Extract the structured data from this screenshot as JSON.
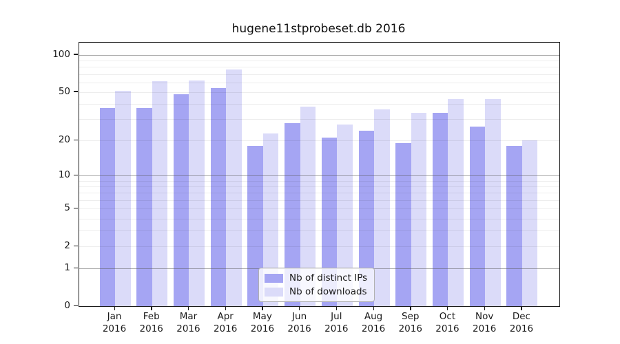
{
  "chart_data": {
    "type": "bar",
    "title": "hugene11stprobeset.db 2016",
    "categories": [
      "Jan 2016",
      "Feb 2016",
      "Mar 2016",
      "Apr 2016",
      "May 2016",
      "Jun 2016",
      "Jul 2016",
      "Aug 2016",
      "Sep 2016",
      "Oct 2016",
      "Nov 2016",
      "Dec 2016"
    ],
    "series": [
      {
        "name": "Nb of distinct IPs",
        "color": "#a5a5f3",
        "values": [
          37,
          37,
          48,
          54,
          18,
          28,
          21,
          24,
          19,
          34,
          26,
          18
        ]
      },
      {
        "name": "Nb of downloads",
        "color": "#dbdbf9",
        "values": [
          51,
          61,
          62,
          76,
          23,
          38,
          27,
          36,
          34,
          44,
          44,
          20
        ]
      }
    ],
    "xlabel": "",
    "ylabel": "",
    "yscale": "log1p",
    "ylim": [
      0,
      125
    ],
    "yticks": [
      0,
      1,
      2,
      5,
      10,
      20,
      50,
      100
    ],
    "major_gridlines": [
      1,
      10,
      100
    ],
    "minor_gridlines": [
      2,
      3,
      4,
      5,
      6,
      7,
      8,
      9,
      20,
      30,
      40,
      50,
      60,
      70,
      80,
      90
    ],
    "grid": true,
    "legend_position": "lower center, inside plot"
  }
}
